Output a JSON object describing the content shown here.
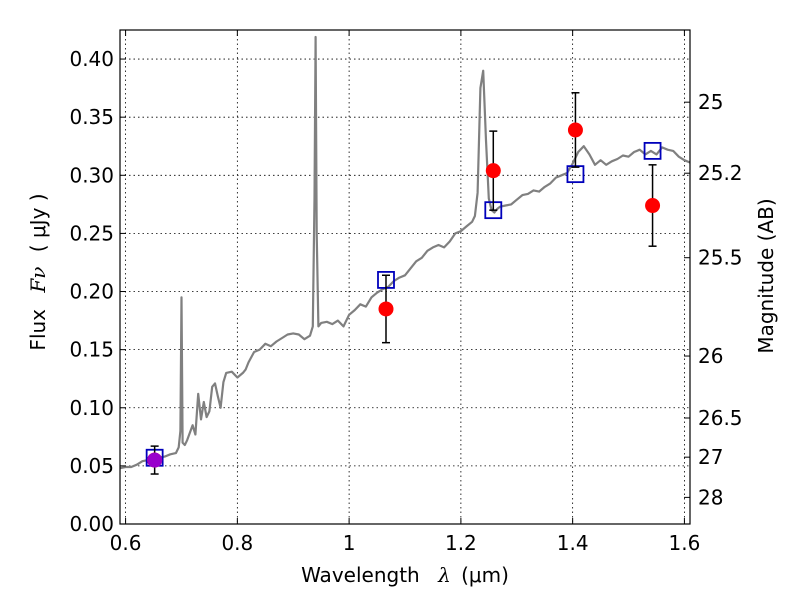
{
  "chart_data": {
    "type": "scatter",
    "xlabel": "Wavelength",
    "xlabel_symbol": "λ",
    "xlabel_unit": "(μm)",
    "ylabel": "Flux",
    "ylabel_symbol": "Fν",
    "ylabel_unit": "( μJy )",
    "y2label": "Magnitude (AB)",
    "xlim": [
      0.59,
      1.61
    ],
    "ylim": [
      0.0,
      0.425
    ],
    "grid": true,
    "x_ticks": [
      {
        "value": 0.6,
        "label": "0.6"
      },
      {
        "value": 0.8,
        "label": "0.8"
      },
      {
        "value": 1.0,
        "label": "1"
      },
      {
        "value": 1.2,
        "label": "1.2"
      },
      {
        "value": 1.4,
        "label": "1.4"
      },
      {
        "value": 1.6,
        "label": "1.6"
      }
    ],
    "y_ticks": [
      {
        "value": 0.0,
        "label": "0.00"
      },
      {
        "value": 0.05,
        "label": "0.05"
      },
      {
        "value": 0.1,
        "label": "0.10"
      },
      {
        "value": 0.15,
        "label": "0.15"
      },
      {
        "value": 0.2,
        "label": "0.20"
      },
      {
        "value": 0.25,
        "label": "0.25"
      },
      {
        "value": 0.3,
        "label": "0.30"
      },
      {
        "value": 0.35,
        "label": "0.35"
      },
      {
        "value": 0.4,
        "label": "0.40"
      }
    ],
    "y2_ticks": [
      {
        "flux": 0.3629,
        "label": "25"
      },
      {
        "flux": 0.3018,
        "label": "25.2"
      },
      {
        "flux": 0.2291,
        "label": "25.5"
      },
      {
        "flux": 0.1445,
        "label": "26"
      },
      {
        "flux": 0.0912,
        "label": "26.5"
      },
      {
        "flux": 0.0575,
        "label": "27"
      },
      {
        "flux": 0.0229,
        "label": "28"
      }
    ],
    "series": [
      {
        "kind": "line",
        "color": "#808080",
        "x": [
          0.59,
          0.6,
          0.61,
          0.62,
          0.63,
          0.64,
          0.65,
          0.66,
          0.67,
          0.68,
          0.69,
          0.695,
          0.698,
          0.7,
          0.702,
          0.706,
          0.71,
          0.72,
          0.725,
          0.73,
          0.735,
          0.74,
          0.745,
          0.75,
          0.755,
          0.76,
          0.765,
          0.77,
          0.775,
          0.78,
          0.79,
          0.8,
          0.81,
          0.815,
          0.82,
          0.83,
          0.84,
          0.85,
          0.86,
          0.87,
          0.88,
          0.89,
          0.9,
          0.91,
          0.92,
          0.93,
          0.935,
          0.938,
          0.94,
          0.942,
          0.945,
          0.95,
          0.96,
          0.97,
          0.98,
          0.99,
          1.0,
          1.01,
          1.02,
          1.03,
          1.04,
          1.05,
          1.06,
          1.07,
          1.08,
          1.09,
          1.1,
          1.11,
          1.12,
          1.13,
          1.14,
          1.15,
          1.16,
          1.17,
          1.18,
          1.19,
          1.2,
          1.21,
          1.22,
          1.225,
          1.23,
          1.235,
          1.24,
          1.245,
          1.25,
          1.255,
          1.26,
          1.265,
          1.27,
          1.28,
          1.29,
          1.3,
          1.31,
          1.32,
          1.33,
          1.34,
          1.35,
          1.36,
          1.37,
          1.38,
          1.39,
          1.4,
          1.41,
          1.42,
          1.43,
          1.44,
          1.45,
          1.46,
          1.47,
          1.48,
          1.49,
          1.5,
          1.51,
          1.52,
          1.53,
          1.54,
          1.55,
          1.56,
          1.57,
          1.58,
          1.59,
          1.6,
          1.61
        ],
        "y": [
          0.048,
          0.049,
          0.049,
          0.051,
          0.054,
          0.055,
          0.054,
          0.057,
          0.058,
          0.06,
          0.061,
          0.066,
          0.08,
          0.195,
          0.07,
          0.068,
          0.072,
          0.085,
          0.077,
          0.112,
          0.09,
          0.105,
          0.092,
          0.097,
          0.118,
          0.121,
          0.11,
          0.1,
          0.122,
          0.13,
          0.131,
          0.126,
          0.13,
          0.133,
          0.139,
          0.148,
          0.15,
          0.155,
          0.153,
          0.157,
          0.16,
          0.163,
          0.164,
          0.163,
          0.159,
          0.162,
          0.17,
          0.28,
          0.419,
          0.25,
          0.17,
          0.173,
          0.174,
          0.172,
          0.175,
          0.17,
          0.18,
          0.184,
          0.189,
          0.187,
          0.195,
          0.199,
          0.202,
          0.204,
          0.209,
          0.212,
          0.214,
          0.22,
          0.226,
          0.229,
          0.235,
          0.238,
          0.24,
          0.238,
          0.243,
          0.25,
          0.252,
          0.256,
          0.26,
          0.265,
          0.285,
          0.375,
          0.39,
          0.33,
          0.28,
          0.27,
          0.268,
          0.271,
          0.273,
          0.274,
          0.275,
          0.279,
          0.283,
          0.284,
          0.287,
          0.286,
          0.29,
          0.293,
          0.298,
          0.3,
          0.302,
          0.31,
          0.32,
          0.325,
          0.318,
          0.309,
          0.313,
          0.309,
          0.312,
          0.314,
          0.317,
          0.316,
          0.32,
          0.322,
          0.318,
          0.321,
          0.318,
          0.324,
          0.322,
          0.321,
          0.316,
          0.313,
          0.311
        ]
      },
      {
        "kind": "squares",
        "color": "#0000bb",
        "x": [
          0.652,
          1.066,
          1.258,
          1.405,
          1.543
        ],
        "y": [
          0.057,
          0.21,
          0.27,
          0.301,
          0.321
        ]
      },
      {
        "kind": "points_with_errors",
        "color": "#ff0000",
        "x": [
          0.652,
          1.066,
          1.258,
          1.405,
          1.543
        ],
        "y": [
          0.055,
          0.185,
          0.304,
          0.339,
          0.274
        ],
        "yerr": [
          0.012,
          0.029,
          0.034,
          0.032,
          0.035
        ]
      }
    ],
    "highlight_point": {
      "x": 0.652,
      "y": 0.055,
      "color": "#9900cc"
    }
  }
}
